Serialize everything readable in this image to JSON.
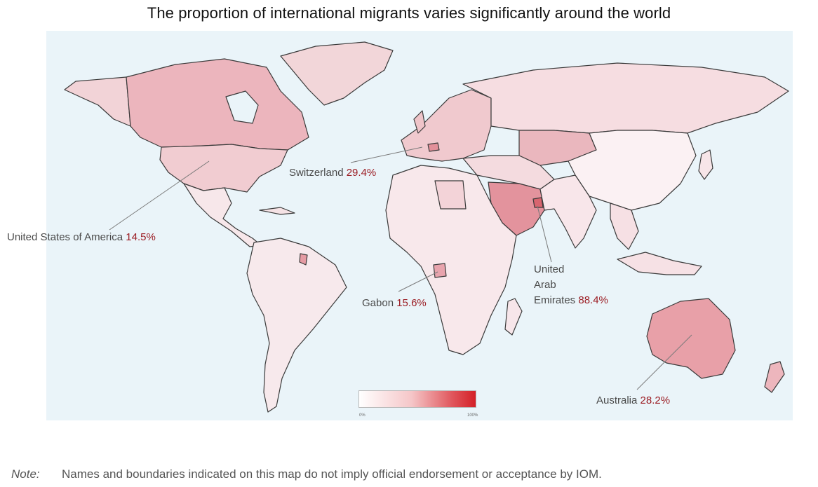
{
  "title": "The proportion of international migrants varies significantly around the world",
  "legend": {
    "min_label": "0%",
    "max_label": "100%",
    "color_low": "#ffffff",
    "color_high": "#d42027"
  },
  "callouts": {
    "usa": {
      "name": "United States of America",
      "value": "14.5%"
    },
    "switzerland": {
      "name": "Switzerland",
      "value": "29.4%"
    },
    "gabon": {
      "name": "Gabon",
      "value": "15.6%"
    },
    "uae": {
      "name_line1": "United",
      "name_line2": "Arab",
      "name_line3": "Emirates",
      "value": "88.4%"
    },
    "australia": {
      "name": "Australia",
      "value": "28.2%"
    }
  },
  "note": {
    "label": "Note:",
    "text": "Names and boundaries indicated on this map do not imply official endorsement or acceptance by IOM."
  },
  "colors": {
    "ocean": "#eaf4f9",
    "border": "#3a3a3a",
    "value_text": "#9b1c23"
  }
}
